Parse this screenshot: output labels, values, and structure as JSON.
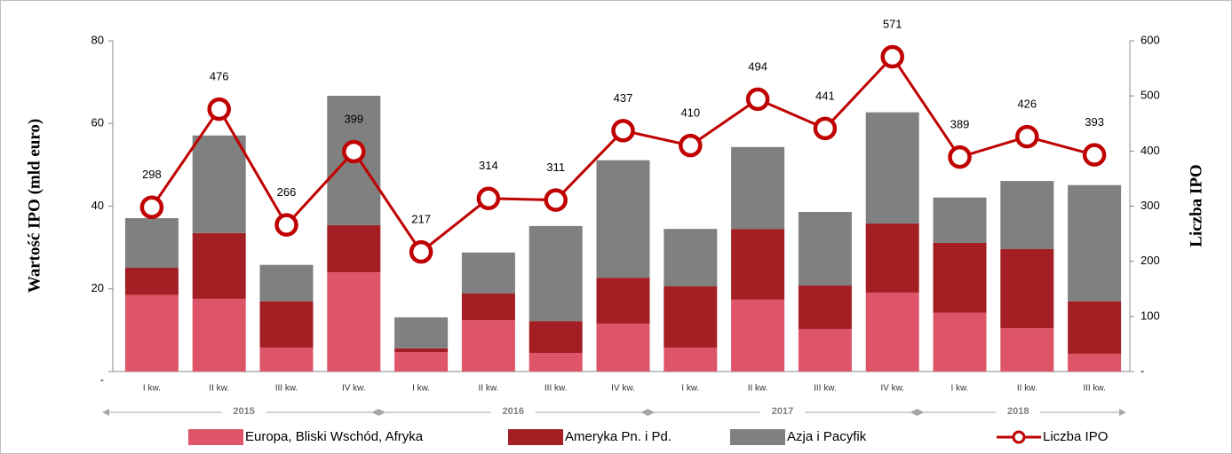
{
  "chart_data": {
    "type": "bar+line",
    "categories": [
      "I kw.",
      "II kw.",
      "III kw.",
      "IV kw.",
      "I kw.",
      "II kw.",
      "III kw.",
      "IV kw.",
      "I kw.",
      "II kw.",
      "III kw.",
      "IV kw.",
      "I kw.",
      "II kw.",
      "III kw."
    ],
    "year_labels": [
      "2015",
      "2016",
      "2017",
      "2018"
    ],
    "y_label": "Wartość IPO (mld euro)",
    "y2_label": "Liczba IPO",
    "ylim": [
      0,
      80
    ],
    "yticks": [
      {
        "value": 0,
        "label": "-"
      },
      20,
      40,
      60,
      80
    ],
    "y2lim": [
      0,
      600
    ],
    "y2ticks": [
      {
        "value": 0,
        "label": "-"
      },
      100,
      200,
      300,
      400,
      500,
      600
    ],
    "series": [
      {
        "name": "Europa, Bliski Wschód, Afryka",
        "color": "#de5469",
        "stack": true,
        "values": [
          18.5,
          17.6,
          5.8,
          24,
          4.7,
          12.4,
          4.5,
          11.6,
          5.8,
          17.4,
          10.3,
          19.1,
          14.2,
          10.5,
          4.3
        ]
      },
      {
        "name": "Ameryka Pn. i Pd.",
        "color": "#a31f24",
        "stack": true,
        "values": [
          6.6,
          15.9,
          11.2,
          11.4,
          0.9,
          6.5,
          7.7,
          11.1,
          14.8,
          17.1,
          10.5,
          16.7,
          16.9,
          19.1,
          12.7
        ]
      },
      {
        "name": "Azja i Pacyfik",
        "color": "#808080",
        "stack": true,
        "values": [
          12,
          23.6,
          8.8,
          31.3,
          7.5,
          9.9,
          23,
          28.4,
          13.9,
          19.8,
          17.8,
          26.9,
          11,
          16.5,
          28.1
        ]
      },
      {
        "name": "Liczba IPO",
        "color": "#c00000",
        "axis": "y2",
        "values": [
          298,
          476,
          266,
          399,
          217,
          314,
          311,
          437,
          410,
          494,
          441,
          571,
          389,
          426,
          393
        ]
      }
    ]
  }
}
